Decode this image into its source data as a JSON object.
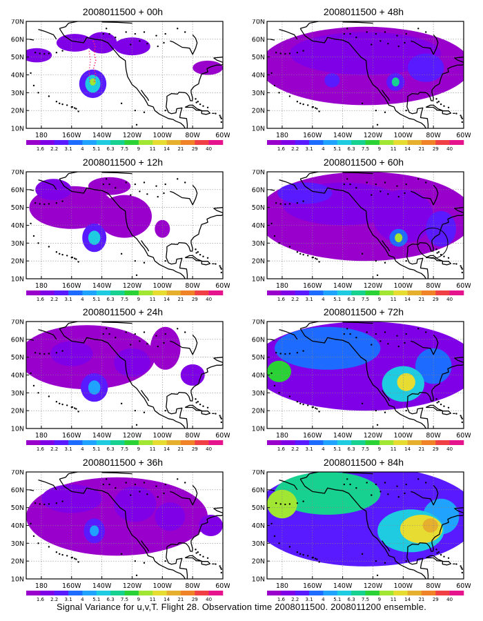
{
  "figure": {
    "caption": "Signal Variance for u,v,T. Flight 28. Observation time 2008011500. 2008011200 ensemble.",
    "map_region": {
      "lon_range": [
        -190,
        -60
      ],
      "lat_range": [
        10,
        70
      ]
    },
    "y_ticks": [
      "70N",
      "60N",
      "50N",
      "40N",
      "30N",
      "20N",
      "10N"
    ],
    "x_ticks": [
      "180",
      "160W",
      "140W",
      "120W",
      "100W",
      "80W",
      "60W"
    ],
    "colorbar": {
      "labels": [
        "1.6",
        "2.2",
        "3.1",
        "4",
        "5.1",
        "6.3",
        "7.5",
        "9",
        "11",
        "14",
        "21",
        "29",
        "40"
      ],
      "colors": [
        "#9900cc",
        "#7f00e6",
        "#5a1aff",
        "#1e6bff",
        "#1fa3ff",
        "#1ecbe1",
        "#17d191",
        "#2bd236",
        "#a0e632",
        "#e6dc32",
        "#e6af2d",
        "#f08228",
        "#f04046",
        "#e6148c"
      ]
    }
  },
  "chart_data": [
    {
      "type": "heatmap",
      "title": "2008011500 + 00h",
      "lead_hours": 0,
      "panel": "left-1",
      "annotation": "red dotted track near 145W, 35N-60N",
      "blobs": [
        {
          "lon": -146,
          "lat": 35,
          "rx": 9,
          "ry": 8,
          "level": 2
        },
        {
          "lon": -146,
          "lat": 35,
          "rx": 5,
          "ry": 5,
          "level": 5
        },
        {
          "lon": -146,
          "lat": 36,
          "rx": 2,
          "ry": 2,
          "level": 8
        },
        {
          "lon": -158,
          "lat": 58,
          "rx": 12,
          "ry": 5,
          "level": 1
        },
        {
          "lon": -140,
          "lat": 58,
          "rx": 10,
          "ry": 6,
          "level": 1
        },
        {
          "lon": -120,
          "lat": 56,
          "rx": 12,
          "ry": 5,
          "level": 1
        },
        {
          "lon": -183,
          "lat": 51,
          "rx": 10,
          "ry": 4,
          "level": 1
        },
        {
          "lon": -70,
          "lat": 44,
          "rx": 10,
          "ry": 4,
          "level": 0
        }
      ]
    },
    {
      "type": "heatmap",
      "title": "2008011500 + 12h",
      "lead_hours": 12,
      "panel": "left-2",
      "blobs": [
        {
          "lon": -145,
          "lat": 33,
          "rx": 8,
          "ry": 8,
          "level": 2
        },
        {
          "lon": -145,
          "lat": 33,
          "rx": 4,
          "ry": 4,
          "level": 5
        },
        {
          "lon": -172,
          "lat": 60,
          "rx": 12,
          "ry": 6,
          "level": 1
        },
        {
          "lon": -160,
          "lat": 50,
          "rx": 28,
          "ry": 12,
          "level": 0
        },
        {
          "lon": -125,
          "lat": 45,
          "rx": 18,
          "ry": 12,
          "level": 0
        },
        {
          "lon": -135,
          "lat": 62,
          "rx": 14,
          "ry": 5,
          "level": 0
        },
        {
          "lon": -100,
          "lat": 38,
          "rx": 5,
          "ry": 5,
          "level": 0
        }
      ]
    },
    {
      "type": "heatmap",
      "title": "2008011500 + 24h",
      "lead_hours": 24,
      "panel": "left-3",
      "blobs": [
        {
          "lon": -150,
          "lat": 50,
          "rx": 45,
          "ry": 18,
          "level": 0
        },
        {
          "lon": -145,
          "lat": 33,
          "rx": 9,
          "ry": 8,
          "level": 2
        },
        {
          "lon": -145,
          "lat": 33,
          "rx": 4,
          "ry": 4,
          "level": 4
        },
        {
          "lon": -160,
          "lat": 52,
          "rx": 14,
          "ry": 7,
          "level": 1
        },
        {
          "lon": -120,
          "lat": 47,
          "rx": 12,
          "ry": 8,
          "level": 1
        },
        {
          "lon": -80,
          "lat": 40,
          "rx": 8,
          "ry": 6,
          "level": 1
        },
        {
          "lon": -98,
          "lat": 55,
          "rx": 10,
          "ry": 12,
          "level": 0
        }
      ]
    },
    {
      "type": "heatmap",
      "title": "2008011500 + 36h",
      "lead_hours": 36,
      "panel": "left-4",
      "blobs": [
        {
          "lon": -130,
          "lat": 45,
          "rx": 60,
          "ry": 22,
          "level": 0
        },
        {
          "lon": -145,
          "lat": 37,
          "rx": 7,
          "ry": 7,
          "level": 2
        },
        {
          "lon": -145,
          "lat": 37,
          "rx": 3,
          "ry": 3,
          "level": 4
        },
        {
          "lon": -160,
          "lat": 55,
          "rx": 20,
          "ry": 8,
          "level": 1
        },
        {
          "lon": -118,
          "lat": 52,
          "rx": 14,
          "ry": 10,
          "level": 1
        },
        {
          "lon": -95,
          "lat": 45,
          "rx": 10,
          "ry": 8,
          "level": 1
        },
        {
          "lon": -68,
          "lat": 40,
          "rx": 8,
          "ry": 6,
          "level": 1
        }
      ]
    },
    {
      "type": "heatmap",
      "title": "2008011500 + 48h",
      "lead_hours": 48,
      "panel": "right-1",
      "blobs": [
        {
          "lon": -125,
          "lat": 45,
          "rx": 70,
          "ry": 22,
          "level": 0
        },
        {
          "lon": -125,
          "lat": 52,
          "rx": 50,
          "ry": 12,
          "level": 1
        },
        {
          "lon": -105,
          "lat": 36,
          "rx": 6,
          "ry": 5,
          "level": 2
        },
        {
          "lon": -105,
          "lat": 36,
          "rx": 2.5,
          "ry": 2.5,
          "level": 6
        },
        {
          "lon": -147,
          "lat": 37,
          "rx": 5,
          "ry": 4,
          "level": 2
        },
        {
          "lon": -85,
          "lat": 44,
          "rx": 12,
          "ry": 8,
          "level": 2
        }
      ]
    },
    {
      "type": "heatmap",
      "title": "2008011500 + 60h",
      "lead_hours": 60,
      "panel": "right-2",
      "annotation": "black circle near 80W, 30N",
      "blobs": [
        {
          "lon": -125,
          "lat": 45,
          "rx": 72,
          "ry": 25,
          "level": 0
        },
        {
          "lon": -140,
          "lat": 52,
          "rx": 40,
          "ry": 12,
          "level": 1
        },
        {
          "lon": -100,
          "lat": 45,
          "rx": 20,
          "ry": 15,
          "level": 1
        },
        {
          "lon": -103,
          "lat": 33,
          "rx": 6,
          "ry": 5,
          "level": 3
        },
        {
          "lon": -103,
          "lat": 33,
          "rx": 2.5,
          "ry": 2.5,
          "level": 8
        },
        {
          "lon": -75,
          "lat": 38,
          "rx": 10,
          "ry": 10,
          "level": 2
        },
        {
          "lon": -165,
          "lat": 58,
          "rx": 18,
          "ry": 6,
          "level": 2
        }
      ]
    },
    {
      "type": "heatmap",
      "title": "2008011500 + 72h",
      "lead_hours": 72,
      "panel": "right-3",
      "blobs": [
        {
          "lon": -125,
          "lat": 45,
          "rx": 75,
          "ry": 25,
          "level": 1
        },
        {
          "lon": -150,
          "lat": 55,
          "rx": 35,
          "ry": 12,
          "level": 3
        },
        {
          "lon": -182,
          "lat": 42,
          "rx": 8,
          "ry": 6,
          "level": 7
        },
        {
          "lon": -100,
          "lat": 35,
          "rx": 14,
          "ry": 10,
          "level": 5
        },
        {
          "lon": -98,
          "lat": 36,
          "rx": 6,
          "ry": 5,
          "level": 9
        },
        {
          "lon": -80,
          "lat": 45,
          "rx": 12,
          "ry": 10,
          "level": 3
        }
      ]
    },
    {
      "type": "heatmap",
      "title": "2008011500 + 84h",
      "lead_hours": 84,
      "panel": "right-4",
      "blobs": [
        {
          "lon": -125,
          "lat": 45,
          "rx": 75,
          "ry": 28,
          "level": 2
        },
        {
          "lon": -150,
          "lat": 58,
          "rx": 35,
          "ry": 12,
          "level": 6
        },
        {
          "lon": -180,
          "lat": 52,
          "rx": 10,
          "ry": 8,
          "level": 8
        },
        {
          "lon": -95,
          "lat": 37,
          "rx": 22,
          "ry": 12,
          "level": 5
        },
        {
          "lon": -88,
          "lat": 38,
          "rx": 14,
          "ry": 8,
          "level": 9
        },
        {
          "lon": -82,
          "lat": 40,
          "rx": 5,
          "ry": 4,
          "level": 10
        },
        {
          "lon": -75,
          "lat": 45,
          "rx": 12,
          "ry": 10,
          "level": 4
        }
      ]
    }
  ]
}
